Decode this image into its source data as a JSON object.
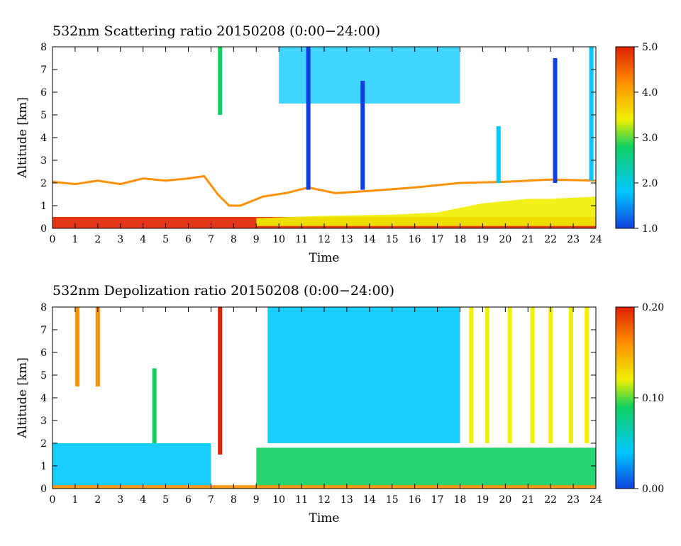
{
  "chart_data": [
    {
      "type": "heatmap",
      "title": "532nm Scattering ratio  20150208 (0:00−24:00)",
      "xlabel": "Time",
      "ylabel": "Altitude [km]",
      "xlim": [
        0,
        24
      ],
      "ylim": [
        0,
        8
      ],
      "x_ticks": [
        "0",
        "1",
        "2",
        "3",
        "4",
        "5",
        "6",
        "7",
        "8",
        "9",
        "10",
        "11",
        "12",
        "13",
        "14",
        "15",
        "16",
        "17",
        "18",
        "19",
        "20",
        "21",
        "22",
        "23",
        "24"
      ],
      "y_ticks": [
        "0",
        "1",
        "2",
        "3",
        "4",
        "5",
        "6",
        "7",
        "8"
      ],
      "colorbar": {
        "range": [
          1.0,
          5.0
        ],
        "tick_labels": [
          "1.0",
          "2.0",
          "3.0",
          "4.0",
          "5.0"
        ],
        "tick_values": [
          1.0,
          2.0,
          3.0,
          4.0,
          5.0
        ],
        "colors": [
          "#1040e0",
          "#00c8ff",
          "#10d060",
          "#f0f000",
          "#ff9000",
          "#e02000"
        ]
      },
      "features": [
        {
          "kind": "surface_layer",
          "x": [
            0,
            24
          ],
          "y": [
            0.0,
            0.5
          ],
          "value": 4.6
        },
        {
          "kind": "aerosol_top_line",
          "points": [
            [
              0,
              2.05
            ],
            [
              1,
              1.95
            ],
            [
              2,
              2.1
            ],
            [
              3,
              1.95
            ],
            [
              4,
              2.2
            ],
            [
              5,
              2.1
            ],
            [
              6,
              2.2
            ],
            [
              6.7,
              2.3
            ],
            [
              7.3,
              1.5
            ],
            [
              7.8,
              1.0
            ],
            [
              8.3,
              1.0
            ],
            [
              9.3,
              1.4
            ],
            [
              10.3,
              1.55
            ],
            [
              11.3,
              1.8
            ],
            [
              12.5,
              1.55
            ],
            [
              14,
              1.65
            ],
            [
              16,
              1.8
            ],
            [
              18,
              2.0
            ],
            [
              20,
              2.05
            ],
            [
              22,
              2.15
            ],
            [
              24,
              2.1
            ]
          ],
          "value": 4.0
        },
        {
          "kind": "boundary_layer_growth",
          "points": [
            [
              9,
              0.45
            ],
            [
              12,
              0.55
            ],
            [
              15,
              0.6
            ],
            [
              17,
              0.7
            ],
            [
              18,
              0.9
            ],
            [
              19,
              1.1
            ],
            [
              20,
              1.2
            ],
            [
              21,
              1.3
            ],
            [
              22,
              1.3
            ],
            [
              23,
              1.35
            ],
            [
              24,
              1.4
            ]
          ],
          "value": 3.6
        },
        {
          "kind": "cirrus",
          "x": [
            10,
            18
          ],
          "y": [
            5.5,
            8.0
          ],
          "value": 1.8
        },
        {
          "kind": "virga_streak",
          "x": 11.3,
          "y": [
            1.7,
            8.0
          ],
          "value": 1.4
        },
        {
          "kind": "virga_streak",
          "x": 13.7,
          "y": [
            1.7,
            6.5
          ],
          "value": 1.4
        },
        {
          "kind": "virga_streak",
          "x": 7.4,
          "y": [
            5.0,
            8.0
          ],
          "value": 2.5
        },
        {
          "kind": "virga_streak",
          "x": 19.7,
          "y": [
            2.0,
            4.5
          ],
          "value": 1.5
        },
        {
          "kind": "virga_streak",
          "x": 22.2,
          "y": [
            2.0,
            7.5
          ],
          "value": 1.4
        },
        {
          "kind": "virga_streak",
          "x": 23.8,
          "y": [
            2.1,
            8.0
          ],
          "value": 1.5
        }
      ]
    },
    {
      "type": "heatmap",
      "title": "532nm Depolization ratio  20150208 (0:00−24:00)",
      "xlabel": "Time",
      "ylabel": "Altitude [km]",
      "xlim": [
        0,
        24
      ],
      "ylim": [
        0,
        8
      ],
      "x_ticks": [
        "0",
        "1",
        "2",
        "3",
        "4",
        "5",
        "6",
        "7",
        "8",
        "9",
        "10",
        "11",
        "12",
        "13",
        "14",
        "15",
        "16",
        "17",
        "18",
        "19",
        "20",
        "21",
        "22",
        "23",
        "24"
      ],
      "y_ticks": [
        "0",
        "1",
        "2",
        "3",
        "4",
        "5",
        "6",
        "7",
        "8"
      ],
      "colorbar": {
        "range": [
          0.0,
          0.2
        ],
        "tick_labels": [
          "0.00",
          "0.10",
          "0.20"
        ],
        "tick_values": [
          0.0,
          0.1,
          0.2
        ],
        "colors": [
          "#1040e0",
          "#00c8ff",
          "#10d060",
          "#f0f000",
          "#ff9000",
          "#e02000"
        ]
      },
      "features": [
        {
          "kind": "boundary_layer",
          "x": [
            0,
            7
          ],
          "y": [
            0.1,
            2.0
          ],
          "value": 0.05
        },
        {
          "kind": "boundary_layer",
          "x": [
            9,
            24
          ],
          "y": [
            0.1,
            1.8
          ],
          "value": 0.08
        },
        {
          "kind": "surface_layer",
          "x": [
            0,
            24
          ],
          "y": [
            0.0,
            0.15
          ],
          "value": 0.17
        },
        {
          "kind": "cloud_mass",
          "x": [
            9.5,
            18
          ],
          "y": [
            2.0,
            8.0
          ],
          "value": 0.05
        },
        {
          "kind": "column",
          "x": 1.1,
          "y": [
            4.5,
            8.0
          ],
          "value": 0.15
        },
        {
          "kind": "column",
          "x": 2.0,
          "y": [
            4.5,
            8.0
          ],
          "value": 0.16
        },
        {
          "kind": "column",
          "x": 4.5,
          "y": [
            2.0,
            5.3
          ],
          "value": 0.08
        },
        {
          "kind": "column",
          "x": 7.4,
          "y": [
            1.5,
            8.0
          ],
          "value": 0.18
        },
        {
          "kind": "column",
          "x": 18.5,
          "y": [
            2.0,
            8.0
          ],
          "value": 0.12
        },
        {
          "kind": "column",
          "x": 19.2,
          "y": [
            2.0,
            8.0
          ],
          "value": 0.13
        },
        {
          "kind": "column",
          "x": 20.2,
          "y": [
            2.0,
            8.0
          ],
          "value": 0.12
        },
        {
          "kind": "column",
          "x": 21.2,
          "y": [
            2.0,
            8.0
          ],
          "value": 0.13
        },
        {
          "kind": "column",
          "x": 22.0,
          "y": [
            2.0,
            8.0
          ],
          "value": 0.12
        },
        {
          "kind": "column",
          "x": 22.9,
          "y": [
            2.0,
            8.0
          ],
          "value": 0.13
        },
        {
          "kind": "column",
          "x": 23.6,
          "y": [
            2.0,
            8.0
          ],
          "value": 0.12
        }
      ]
    }
  ]
}
